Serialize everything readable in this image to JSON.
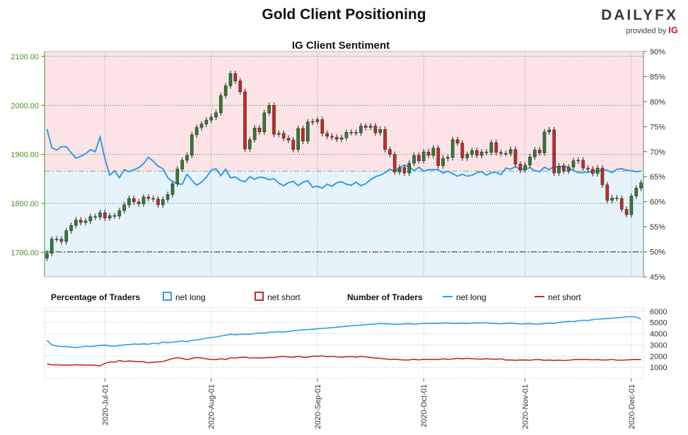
{
  "header": {
    "title": "Gold Client Positioning",
    "brand": "DAILYFX",
    "provided_by": "provided by",
    "provider": "IG"
  },
  "chart_data": [
    {
      "type": "candlestick+line",
      "title": "IG Client Sentiment",
      "left_axis": {
        "ticks": [
          "1700.00",
          "1800.00",
          "1900.00",
          "2000.00",
          "2100.00"
        ],
        "range": [
          1650,
          2110
        ]
      },
      "right_axis": {
        "ticks": [
          "45%",
          "50%",
          "55%",
          "60%",
          "65%",
          "70%",
          "75%",
          "80%",
          "85%",
          "90%"
        ],
        "range": [
          45,
          90
        ]
      },
      "reference_lines": {
        "net_long_50": 50,
        "net_long_current": 66.1
      },
      "colors": {
        "up": "#2e7d32",
        "down": "#c62828",
        "line": "#2f9ee6",
        "long_bg": "#e6f3fb",
        "short_bg": "#fbe3e6"
      },
      "dates": [
        "2020-06-15",
        "2020-06-16",
        "2020-06-17",
        "2020-06-18",
        "2020-06-19",
        "2020-06-22",
        "2020-06-23",
        "2020-06-24",
        "2020-06-25",
        "2020-06-26",
        "2020-06-29",
        "2020-06-30",
        "2020-07-01",
        "2020-07-02",
        "2020-07-03",
        "2020-07-06",
        "2020-07-07",
        "2020-07-08",
        "2020-07-09",
        "2020-07-10",
        "2020-07-13",
        "2020-07-14",
        "2020-07-15",
        "2020-07-16",
        "2020-07-17",
        "2020-07-20",
        "2020-07-21",
        "2020-07-22",
        "2020-07-23",
        "2020-07-24",
        "2020-07-27",
        "2020-07-28",
        "2020-07-29",
        "2020-07-30",
        "2020-07-31",
        "2020-08-03",
        "2020-08-04",
        "2020-08-05",
        "2020-08-06",
        "2020-08-07",
        "2020-08-10",
        "2020-08-11",
        "2020-08-12",
        "2020-08-13",
        "2020-08-14",
        "2020-08-17",
        "2020-08-18",
        "2020-08-19",
        "2020-08-20",
        "2020-08-21",
        "2020-08-24",
        "2020-08-25",
        "2020-08-26",
        "2020-08-27",
        "2020-08-28",
        "2020-08-31",
        "2020-09-01",
        "2020-09-02",
        "2020-09-03",
        "2020-09-04",
        "2020-09-07",
        "2020-09-08",
        "2020-09-09",
        "2020-09-10",
        "2020-09-11",
        "2020-09-14",
        "2020-09-15",
        "2020-09-16",
        "2020-09-17",
        "2020-09-18",
        "2020-09-21",
        "2020-09-22",
        "2020-09-23",
        "2020-09-24",
        "2020-09-25",
        "2020-09-28",
        "2020-09-29",
        "2020-09-30",
        "2020-10-01",
        "2020-10-02",
        "2020-10-05",
        "2020-10-06",
        "2020-10-07",
        "2020-10-08",
        "2020-10-09",
        "2020-10-12",
        "2020-10-13",
        "2020-10-14",
        "2020-10-15",
        "2020-10-16",
        "2020-10-19",
        "2020-10-20",
        "2020-10-21",
        "2020-10-22",
        "2020-10-23",
        "2020-10-26",
        "2020-10-27",
        "2020-10-28",
        "2020-10-29",
        "2020-10-30",
        "2020-11-02",
        "2020-11-03",
        "2020-11-04",
        "2020-11-05",
        "2020-11-06",
        "2020-11-09",
        "2020-11-10",
        "2020-11-11",
        "2020-11-12",
        "2020-11-13",
        "2020-11-16",
        "2020-11-17",
        "2020-11-18",
        "2020-11-19",
        "2020-11-20",
        "2020-11-23",
        "2020-11-24",
        "2020-11-25",
        "2020-11-26",
        "2020-11-27",
        "2020-11-30",
        "2020-12-01",
        "2020-12-02",
        "2020-12-03"
      ],
      "close": [
        1698,
        1727,
        1727,
        1722,
        1744,
        1755,
        1766,
        1761,
        1764,
        1773,
        1772,
        1781,
        1770,
        1775,
        1774,
        1785,
        1797,
        1810,
        1803,
        1799,
        1813,
        1810,
        1809,
        1797,
        1808,
        1818,
        1840,
        1870,
        1888,
        1898,
        1940,
        1955,
        1962,
        1970,
        1976,
        1985,
        2020,
        2040,
        2065,
        2050,
        2028,
        1911,
        1930,
        1954,
        1946,
        1985,
        2000,
        1941,
        1943,
        1933,
        1929,
        1910,
        1953,
        1927,
        1966,
        1967,
        1971,
        1943,
        1937,
        1935,
        1931,
        1934,
        1945,
        1945,
        1944,
        1958,
        1955,
        1958,
        1944,
        1951,
        1910,
        1900,
        1864,
        1873,
        1862,
        1882,
        1898,
        1887,
        1905,
        1898,
        1913,
        1877,
        1892,
        1894,
        1930,
        1923,
        1893,
        1900,
        1908,
        1898,
        1905,
        1904,
        1924,
        1904,
        1902,
        1902,
        1910,
        1880,
        1868,
        1878,
        1895,
        1909,
        1903,
        1946,
        1950,
        1862,
        1876,
        1866,
        1874,
        1887,
        1888,
        1872,
        1870,
        1861,
        1872,
        1838,
        1806,
        1811,
        1810,
        1788,
        1777,
        1815,
        1831,
        1842
      ],
      "net_long_pct": [
        74.5,
        70.8,
        70.3,
        71.0,
        71.0,
        69.8,
        68.7,
        69.1,
        69.6,
        70.4,
        70.0,
        72.9,
        68.6,
        65.3,
        66.2,
        64.8,
        66.4,
        66.0,
        66.4,
        66.8,
        67.6,
        68.9,
        68.1,
        67.1,
        66.6,
        64.8,
        64.0,
        63.6,
        63.5,
        65.5,
        64.3,
        63.3,
        63.9,
        64.9,
        66.3,
        66.6,
        65.2,
        66.5,
        64.8,
        64.9,
        64.3,
        64.0,
        65.0,
        64.5,
        64.9,
        64.8,
        64.4,
        64.6,
        63.7,
        63.2,
        63.8,
        64.1,
        63.2,
        63.9,
        64.2,
        62.9,
        63.1,
        62.7,
        63.5,
        63.1,
        63.8,
        64.0,
        63.5,
        63.3,
        63.9,
        63.2,
        63.6,
        64.4,
        65.0,
        65.3,
        65.8,
        66.5,
        66.0,
        66.8,
        67.3,
        67.0,
        66.2,
        66.9,
        66.1,
        66.4,
        66.4,
        66.4,
        65.7,
        66.1,
        65.6,
        65.1,
        65.5,
        65.1,
        65.3,
        65.8,
        66.0,
        65.3,
        65.8,
        65.9,
        65.4,
        66.7,
        66.5,
        67.0,
        66.4,
        66.6,
        66.8,
        66.2,
        66.0,
        66.9,
        66.4,
        67.1,
        66.8,
        67.2,
        66.8,
        66.2,
        65.8,
        65.8,
        65.9,
        66.1,
        66.0,
        66.4,
        66.3,
        65.8,
        66.5,
        66.6,
        66.3,
        66.2,
        66.0,
        66.1
      ]
    },
    {
      "type": "line",
      "legend_left": {
        "title": "Percentage of Traders",
        "items": [
          "net long",
          "net short"
        ]
      },
      "legend_right": {
        "title": "Number of Traders",
        "items": [
          "net long",
          "net short"
        ]
      },
      "y_ticks": [
        "1000",
        "2000",
        "3000",
        "4000",
        "5000",
        "6000"
      ],
      "ylim": [
        0,
        6300
      ],
      "x_ticks": [
        "2020-Jul-01",
        "2020-Aug-01",
        "2020-Sep-01",
        "2020-Oct-01",
        "2020-Nov-01",
        "2020-Dec-01"
      ],
      "colors": {
        "net_long": "#2f9ee6",
        "net_short": "#c62828"
      },
      "series": [
        {
          "name": "net long",
          "values": [
            3400,
            3000,
            2900,
            2850,
            2850,
            2800,
            2750,
            2820,
            2890,
            2850,
            2900,
            2950,
            2980,
            2900,
            2880,
            2950,
            3000,
            3020,
            3080,
            3050,
            3100,
            3050,
            3150,
            3100,
            3250,
            3200,
            3240,
            3300,
            3350,
            3280,
            3400,
            3450,
            3500,
            3600,
            3660,
            3700,
            3800,
            3850,
            3950,
            3900,
            3950,
            3950,
            3960,
            4000,
            4050,
            4050,
            4130,
            4140,
            4180,
            4140,
            4200,
            4250,
            4300,
            4350,
            4360,
            4400,
            4440,
            4480,
            4500,
            4540,
            4580,
            4620,
            4660,
            4700,
            4740,
            4750,
            4800,
            4840,
            4860,
            4900,
            4880,
            4860,
            4840,
            4850,
            4870,
            4900,
            4850,
            4880,
            4920,
            4900,
            4920,
            4900,
            4940,
            4960,
            4900,
            4920,
            4940,
            4900,
            4950,
            4960,
            4950,
            4980,
            4920,
            4900,
            4880,
            4920,
            4950,
            4900,
            4860,
            4880,
            4900,
            4850,
            4860,
            4900,
            4950,
            4920,
            5000,
            5050,
            5100,
            5080,
            5150,
            5200,
            5180,
            5250,
            5300,
            5320,
            5350,
            5380,
            5420,
            5450,
            5500,
            5520,
            5480,
            5300
          ]
        },
        {
          "name": "net short",
          "values": [
            1300,
            1220,
            1230,
            1200,
            1190,
            1190,
            1230,
            1210,
            1190,
            1200,
            1180,
            1120,
            1350,
            1480,
            1460,
            1600,
            1520,
            1560,
            1530,
            1510,
            1490,
            1400,
            1450,
            1480,
            1520,
            1650,
            1780,
            1850,
            1800,
            1680,
            1790,
            1870,
            1830,
            1760,
            1700,
            1680,
            1760,
            1700,
            1850,
            1820,
            1880,
            1900,
            1820,
            1850,
            1830,
            1840,
            1880,
            1860,
            1940,
            1970,
            1920,
            1900,
            1980,
            1900,
            1900,
            2000,
            1980,
            2020,
            1940,
            1980,
            1930,
            1900,
            1950,
            1960,
            1900,
            1980,
            1930,
            1870,
            1820,
            1800,
            1750,
            1700,
            1730,
            1680,
            1650,
            1660,
            1720,
            1660,
            1720,
            1700,
            1700,
            1700,
            1750,
            1710,
            1740,
            1800,
            1760,
            1800,
            1770,
            1740,
            1720,
            1770,
            1730,
            1720,
            1760,
            1650,
            1660,
            1620,
            1660,
            1650,
            1630,
            1680,
            1690,
            1620,
            1650,
            1610,
            1640,
            1600,
            1630,
            1680,
            1700,
            1700,
            1690,
            1670,
            1690,
            1650,
            1660,
            1700,
            1640,
            1630,
            1660,
            1680,
            1700,
            1680
          ]
        }
      ]
    }
  ]
}
